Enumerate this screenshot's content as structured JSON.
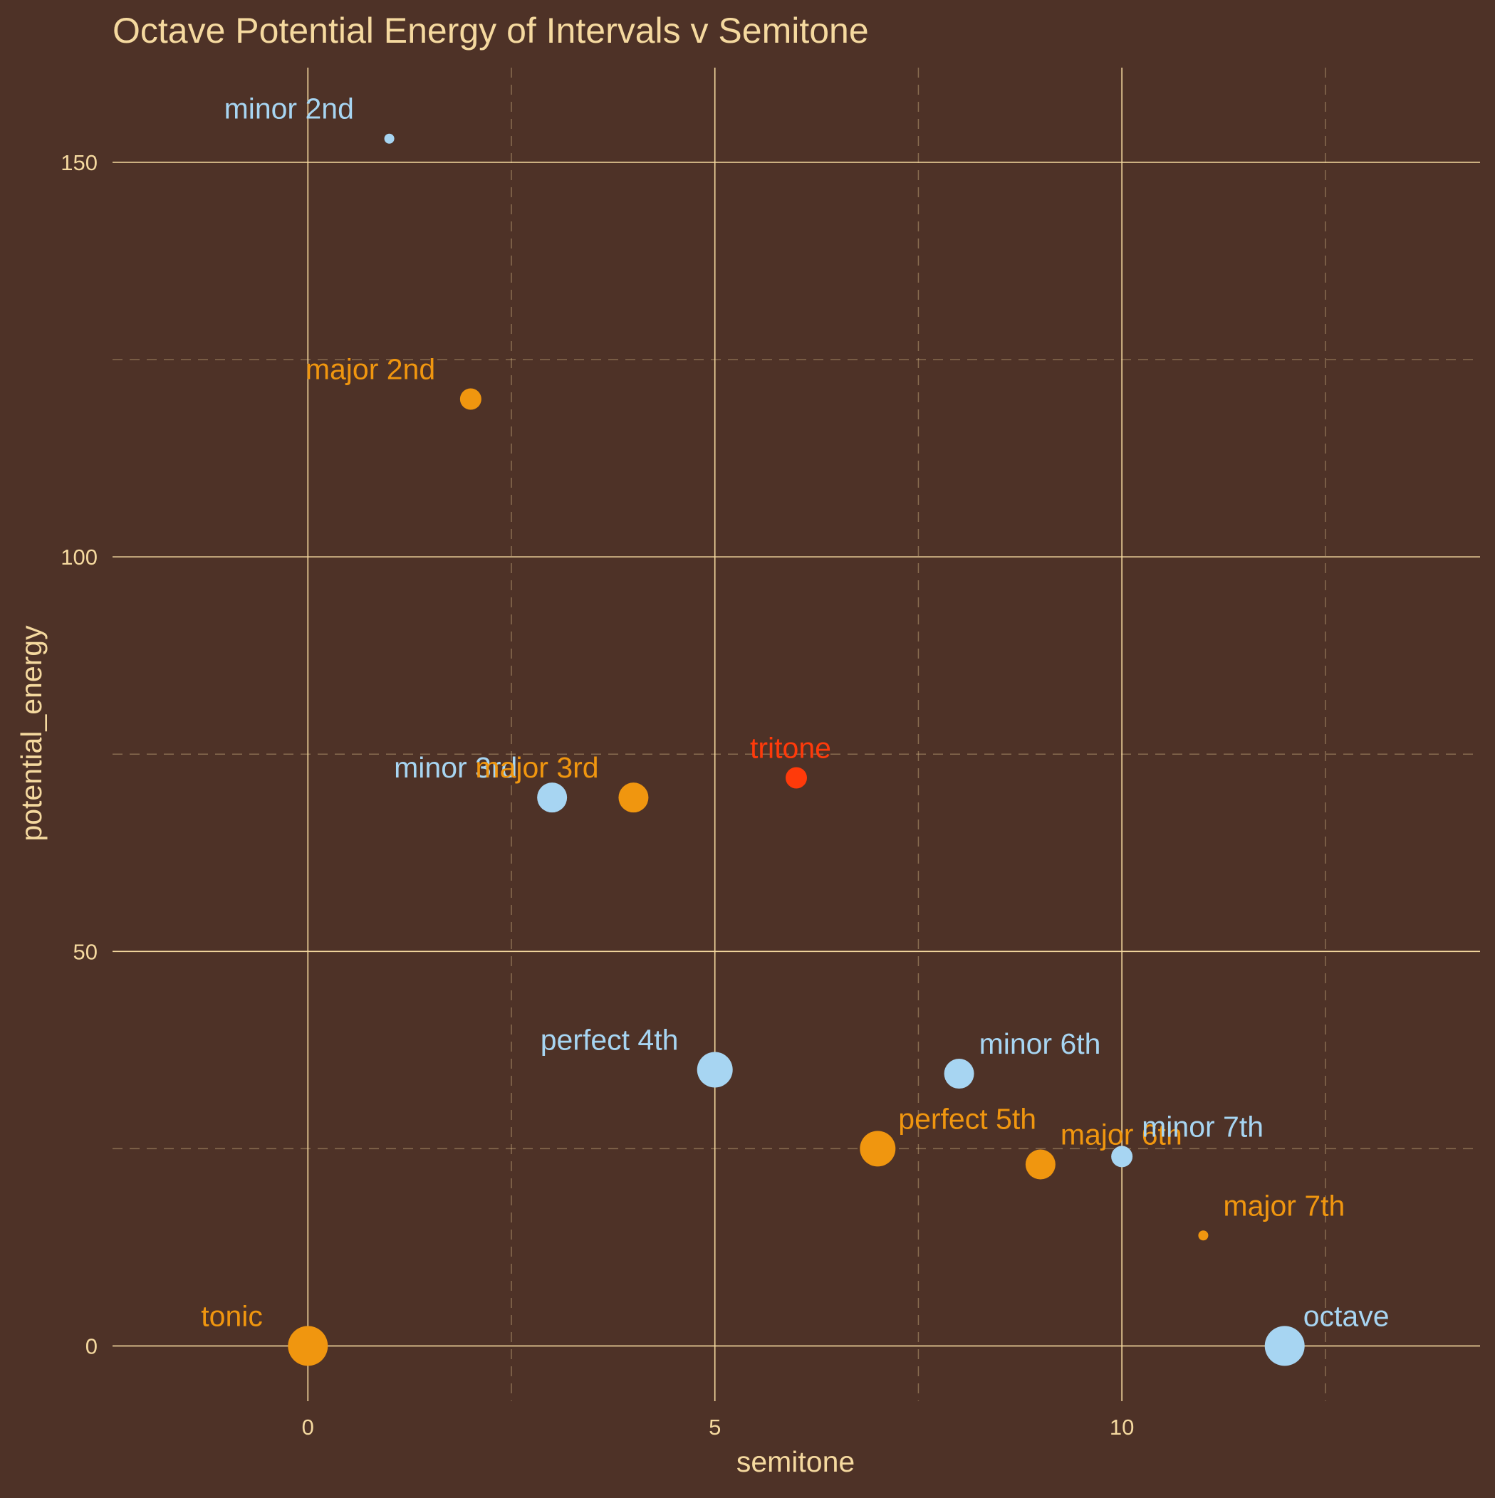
{
  "colors": {
    "background": "#4e3227",
    "text": "#f5d99f",
    "grid": "#f5d99f",
    "orange": "#f0960f",
    "blue": "#a7d5f2",
    "red": "#ff3a0a"
  },
  "chart_data": {
    "type": "scatter",
    "title": "Octave Potential Energy of Intervals v Semitone",
    "xlabel": "semitone",
    "ylabel": "potential_energy",
    "xlim": [
      -2.4,
      14.4
    ],
    "ylim": [
      -7,
      162
    ],
    "x_ticks": [
      0,
      5,
      10
    ],
    "y_ticks": [
      0,
      50,
      100,
      150
    ],
    "x_minor_ticks": [
      2.5,
      7.5,
      12.5
    ],
    "y_minor_ticks": [
      25,
      75,
      125
    ],
    "grid": true,
    "legend": "none",
    "points": [
      {
        "label": "tonic",
        "x": 0,
        "y": 0,
        "size": 5,
        "color": "orange"
      },
      {
        "label": "minor 2nd",
        "x": 1,
        "y": 153,
        "size": 1,
        "color": "blue"
      },
      {
        "label": "major 2nd",
        "x": 2,
        "y": 120,
        "size": 2,
        "color": "orange"
      },
      {
        "label": "minor 3rd",
        "x": 3,
        "y": 69.5,
        "size": 3,
        "color": "blue"
      },
      {
        "label": "major 3rd",
        "x": 4,
        "y": 69.5,
        "size": 3,
        "color": "orange"
      },
      {
        "label": "perfect 4th",
        "x": 5,
        "y": 35,
        "size": 4,
        "color": "blue"
      },
      {
        "label": "tritone",
        "x": 6,
        "y": 72,
        "size": 2,
        "color": "red"
      },
      {
        "label": "perfect 5th",
        "x": 7,
        "y": 25,
        "size": 4,
        "color": "orange"
      },
      {
        "label": "minor 6th",
        "x": 8,
        "y": 34.5,
        "size": 3,
        "color": "blue"
      },
      {
        "label": "major 6th",
        "x": 9,
        "y": 23,
        "size": 3,
        "color": "orange"
      },
      {
        "label": "minor 7th",
        "x": 10,
        "y": 24,
        "size": 2,
        "color": "blue"
      },
      {
        "label": "major 7th",
        "x": 11,
        "y": 14,
        "size": 1,
        "color": "orange"
      },
      {
        "label": "octave",
        "x": 12,
        "y": 0,
        "size": 5,
        "color": "blue"
      }
    ]
  }
}
